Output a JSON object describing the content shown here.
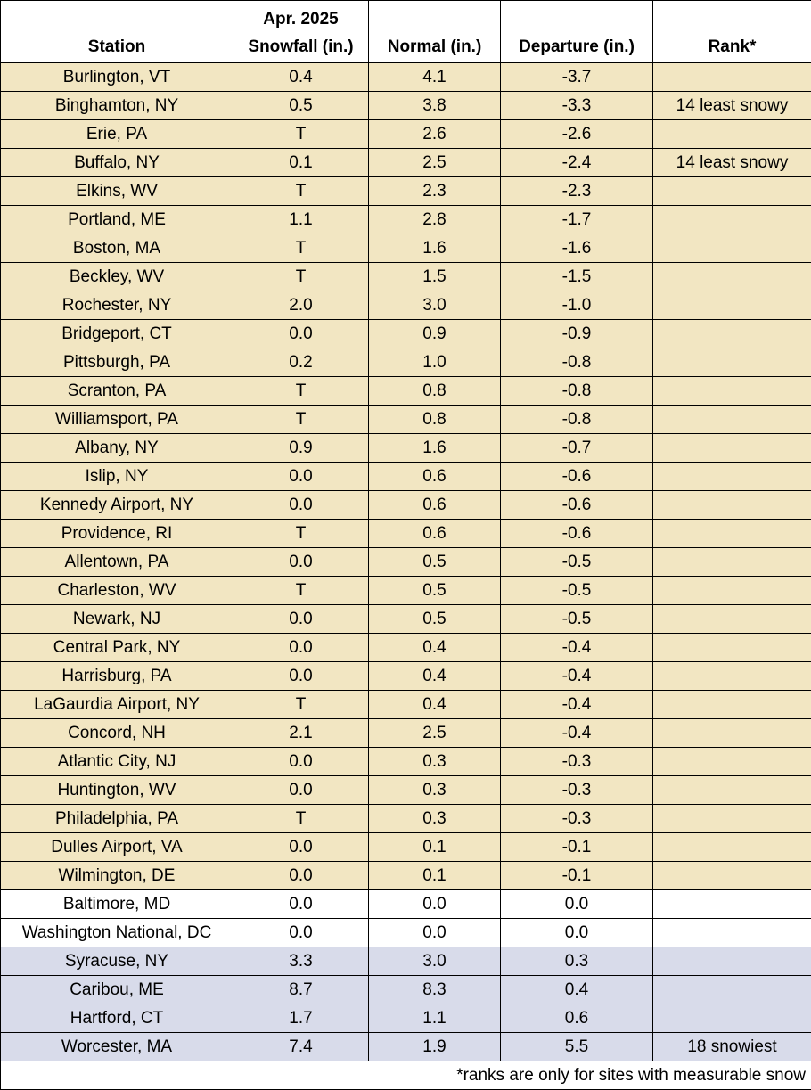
{
  "headers": {
    "station": "Station",
    "snowfall_line1": "Apr. 2025",
    "snowfall_line2": "Snowfall (in.)",
    "normal": "Normal (in.)",
    "departure": "Departure (in.)",
    "rank": "Rank*"
  },
  "colors": {
    "below_normal": "#f2e6c2",
    "near_normal": "#ffffff",
    "above_normal": "#d8dbea"
  },
  "rows": [
    {
      "station": "Burlington, VT",
      "snowfall": "0.4",
      "normal": "4.1",
      "departure": "-3.7",
      "rank": "",
      "group": "below"
    },
    {
      "station": "Binghamton, NY",
      "snowfall": "0.5",
      "normal": "3.8",
      "departure": "-3.3",
      "rank": "14 least snowy",
      "group": "below"
    },
    {
      "station": "Erie, PA",
      "snowfall": "T",
      "normal": "2.6",
      "departure": "-2.6",
      "rank": "",
      "group": "below"
    },
    {
      "station": "Buffalo, NY",
      "snowfall": "0.1",
      "normal": "2.5",
      "departure": "-2.4",
      "rank": "14 least snowy",
      "group": "below"
    },
    {
      "station": "Elkins, WV",
      "snowfall": "T",
      "normal": "2.3",
      "departure": "-2.3",
      "rank": "",
      "group": "below"
    },
    {
      "station": "Portland, ME",
      "snowfall": "1.1",
      "normal": "2.8",
      "departure": "-1.7",
      "rank": "",
      "group": "below"
    },
    {
      "station": "Boston, MA",
      "snowfall": "T",
      "normal": "1.6",
      "departure": "-1.6",
      "rank": "",
      "group": "below"
    },
    {
      "station": "Beckley, WV",
      "snowfall": "T",
      "normal": "1.5",
      "departure": "-1.5",
      "rank": "",
      "group": "below"
    },
    {
      "station": "Rochester, NY",
      "snowfall": "2.0",
      "normal": "3.0",
      "departure": "-1.0",
      "rank": "",
      "group": "below"
    },
    {
      "station": "Bridgeport, CT",
      "snowfall": "0.0",
      "normal": "0.9",
      "departure": "-0.9",
      "rank": "",
      "group": "below"
    },
    {
      "station": "Pittsburgh, PA",
      "snowfall": "0.2",
      "normal": "1.0",
      "departure": "-0.8",
      "rank": "",
      "group": "below"
    },
    {
      "station": "Scranton, PA",
      "snowfall": "T",
      "normal": "0.8",
      "departure": "-0.8",
      "rank": "",
      "group": "below"
    },
    {
      "station": "Williamsport, PA",
      "snowfall": "T",
      "normal": "0.8",
      "departure": "-0.8",
      "rank": "",
      "group": "below"
    },
    {
      "station": "Albany, NY",
      "snowfall": "0.9",
      "normal": "1.6",
      "departure": "-0.7",
      "rank": "",
      "group": "below"
    },
    {
      "station": "Islip, NY",
      "snowfall": "0.0",
      "normal": "0.6",
      "departure": "-0.6",
      "rank": "",
      "group": "below"
    },
    {
      "station": "Kennedy Airport, NY",
      "snowfall": "0.0",
      "normal": "0.6",
      "departure": "-0.6",
      "rank": "",
      "group": "below"
    },
    {
      "station": "Providence, RI",
      "snowfall": "T",
      "normal": "0.6",
      "departure": "-0.6",
      "rank": "",
      "group": "below"
    },
    {
      "station": "Allentown, PA",
      "snowfall": "0.0",
      "normal": "0.5",
      "departure": "-0.5",
      "rank": "",
      "group": "below"
    },
    {
      "station": "Charleston, WV",
      "snowfall": "T",
      "normal": "0.5",
      "departure": "-0.5",
      "rank": "",
      "group": "below"
    },
    {
      "station": "Newark, NJ",
      "snowfall": "0.0",
      "normal": "0.5",
      "departure": "-0.5",
      "rank": "",
      "group": "below"
    },
    {
      "station": "Central Park, NY",
      "snowfall": "0.0",
      "normal": "0.4",
      "departure": "-0.4",
      "rank": "",
      "group": "below"
    },
    {
      "station": "Harrisburg, PA",
      "snowfall": "0.0",
      "normal": "0.4",
      "departure": "-0.4",
      "rank": "",
      "group": "below"
    },
    {
      "station": "LaGaurdia Airport, NY",
      "snowfall": "T",
      "normal": "0.4",
      "departure": "-0.4",
      "rank": "",
      "group": "below"
    },
    {
      "station": "Concord, NH",
      "snowfall": "2.1",
      "normal": "2.5",
      "departure": "-0.4",
      "rank": "",
      "group": "below"
    },
    {
      "station": "Atlantic City, NJ",
      "snowfall": "0.0",
      "normal": "0.3",
      "departure": "-0.3",
      "rank": "",
      "group": "below"
    },
    {
      "station": "Huntington, WV",
      "snowfall": "0.0",
      "normal": "0.3",
      "departure": "-0.3",
      "rank": "",
      "group": "below"
    },
    {
      "station": "Philadelphia, PA",
      "snowfall": "T",
      "normal": "0.3",
      "departure": "-0.3",
      "rank": "",
      "group": "below"
    },
    {
      "station": "Dulles Airport, VA",
      "snowfall": "0.0",
      "normal": "0.1",
      "departure": "-0.1",
      "rank": "",
      "group": "below"
    },
    {
      "station": "Wilmington, DE",
      "snowfall": "0.0",
      "normal": "0.1",
      "departure": "-0.1",
      "rank": "",
      "group": "below"
    },
    {
      "station": "Baltimore, MD",
      "snowfall": "0.0",
      "normal": "0.0",
      "departure": "0.0",
      "rank": "",
      "group": "normal"
    },
    {
      "station": "Washington National, DC",
      "snowfall": "0.0",
      "normal": "0.0",
      "departure": "0.0",
      "rank": "",
      "group": "normal"
    },
    {
      "station": "Syracuse, NY",
      "snowfall": "3.3",
      "normal": "3.0",
      "departure": "0.3",
      "rank": "",
      "group": "above"
    },
    {
      "station": "Caribou, ME",
      "snowfall": "8.7",
      "normal": "8.3",
      "departure": "0.4",
      "rank": "",
      "group": "above"
    },
    {
      "station": "Hartford, CT",
      "snowfall": "1.7",
      "normal": "1.1",
      "departure": "0.6",
      "rank": "",
      "group": "above"
    },
    {
      "station": "Worcester, MA",
      "snowfall": "7.4",
      "normal": "1.9",
      "departure": "5.5",
      "rank": "18 snowiest",
      "group": "above"
    }
  ],
  "footnote": "*ranks are only for sites with measurable snow"
}
